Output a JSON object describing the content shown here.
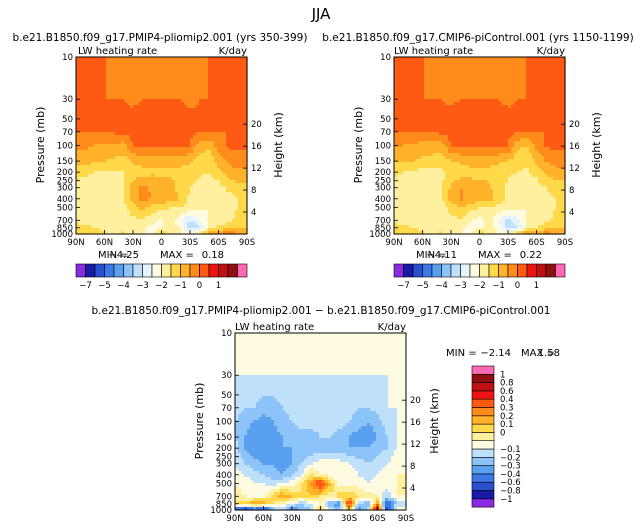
{
  "season": "JJA",
  "palette_absolute": [
    "#8a2be2",
    "#1a1aa8",
    "#2850d0",
    "#3c78e6",
    "#5aa0f0",
    "#8cc3f8",
    "#bfe0fb",
    "#e8f4fd",
    "#fffbe0",
    "#fff0a0",
    "#ffd94a",
    "#ffb22a",
    "#ff8c1a",
    "#ff5a14",
    "#ee1414",
    "#c01010",
    "#901010",
    "#ff69b4"
  ],
  "palette_difference": [
    "#8a2be2",
    "#1a1aa8",
    "#2850d0",
    "#3c78e6",
    "#5aa0f0",
    "#8cc3f8",
    "#bfe0fb",
    "#fffbe0",
    "#fff0a0",
    "#ffd94a",
    "#ffb22a",
    "#ff8c1a",
    "#ff5a14",
    "#ee1414",
    "#c01010",
    "#901010",
    "#ff69b4"
  ],
  "chart_data": [
    {
      "type": "heatmap",
      "title": "b.e21.B1850.f09_g17.PMIP4-pliomip2.001 (yrs 350-399)",
      "variable_label": "LW heating rate",
      "units_label": "K/day",
      "ylabel": "Pressure (mb)",
      "ylabel_right": "Height (km)",
      "x_ticks": [
        "90N",
        "60N",
        "30N",
        "0",
        "30S",
        "60S",
        "90S"
      ],
      "p_ticks": [
        "10",
        "30",
        "50",
        "70",
        "100",
        "150",
        "200",
        "250",
        "300",
        "400",
        "500",
        "700",
        "850",
        "1000"
      ],
      "p_tick_values": [
        10,
        30,
        50,
        70,
        100,
        150,
        200,
        250,
        300,
        400,
        500,
        700,
        850,
        1000
      ],
      "z_ticks": [
        "4",
        "8",
        "12",
        "16",
        "20"
      ],
      "z_tick_values": [
        4,
        8,
        12,
        16,
        20
      ],
      "min_label": "MIN =",
      "min_value": "−4.25",
      "max_label": "MAX =",
      "max_value": "0.18",
      "colorbar_labels": [
        "−7",
        "−5",
        "−4",
        "−3",
        "−2",
        "−1",
        "0",
        "1"
      ],
      "colorbar_label_positions": [
        1,
        3,
        5,
        7,
        9,
        11,
        13,
        15
      ],
      "lat_nodes": [
        90,
        80,
        70,
        60,
        50,
        40,
        30,
        20,
        10,
        0,
        -10,
        -20,
        -30,
        -40,
        -50,
        -60,
        -70,
        -80,
        -90
      ],
      "p_rows": [
        10,
        30,
        70,
        100,
        150,
        200,
        300,
        400,
        500,
        700,
        850,
        1000
      ],
      "values": [
        [
          0.1,
          0.1,
          0.05,
          0.0,
          -0.05,
          -0.1,
          -0.1,
          -0.1,
          -0.1,
          -0.1,
          -0.1,
          -0.1,
          -0.1,
          -0.05,
          0.0,
          0.05,
          0.1,
          0.1,
          0.1
        ],
        [
          0.15,
          0.1,
          0.05,
          0.0,
          0.0,
          0.0,
          -0.05,
          0.0,
          0.0,
          0.0,
          0.0,
          0.0,
          -0.05,
          0.0,
          0.0,
          0.05,
          0.1,
          0.15,
          0.15
        ],
        [
          0.0,
          0.0,
          0.0,
          0.05,
          0.08,
          0.12,
          0.15,
          0.15,
          0.15,
          0.12,
          0.15,
          0.15,
          0.12,
          0.05,
          0.0,
          0.0,
          0.0,
          0.0,
          0.0
        ],
        [
          -0.4,
          -0.4,
          -0.5,
          -0.6,
          -0.6,
          -0.7,
          0.0,
          0.05,
          0.1,
          0.1,
          0.1,
          0.05,
          0.0,
          -0.8,
          -0.9,
          -0.3,
          0.1,
          0.1,
          0.1
        ],
        [
          -0.8,
          -0.8,
          -0.9,
          -1.0,
          -1.1,
          -1.2,
          -0.9,
          -0.8,
          -0.7,
          -0.7,
          -0.7,
          -0.8,
          -0.9,
          -1.2,
          -1.3,
          -0.8,
          -0.4,
          -0.2,
          -0.2
        ],
        [
          -1.3,
          -1.4,
          -1.5,
          -1.6,
          -1.6,
          -1.5,
          -1.2,
          -1.2,
          -1.1,
          -1.1,
          -1.1,
          -1.2,
          -1.3,
          -1.4,
          -1.5,
          -1.2,
          -0.8,
          -0.6,
          -0.6
        ],
        [
          -1.7,
          -1.8,
          -1.8,
          -1.9,
          -1.8,
          -1.6,
          -0.8,
          -0.4,
          -0.6,
          -0.7,
          -0.8,
          -1.2,
          -1.5,
          -1.7,
          -1.9,
          -1.7,
          -1.4,
          -1.2,
          -1.2
        ],
        [
          -1.8,
          -1.9,
          -2.0,
          -1.9,
          -1.8,
          -1.6,
          -0.7,
          -0.3,
          -0.5,
          -0.6,
          -0.7,
          -1.1,
          -1.6,
          -1.9,
          -2.0,
          -1.9,
          -1.7,
          -1.5,
          -1.5
        ],
        [
          -1.8,
          -1.9,
          -2.0,
          -2.0,
          -1.9,
          -1.7,
          -1.2,
          -0.8,
          -1.2,
          -1.4,
          -1.5,
          -1.5,
          -1.7,
          -1.9,
          -2.0,
          -1.9,
          -1.7,
          -1.5,
          -1.5
        ],
        [
          -1.6,
          -1.7,
          -1.8,
          -1.9,
          -1.9,
          -1.8,
          -1.6,
          -1.6,
          -1.8,
          -2.1,
          -1.6,
          -2.5,
          -3.0,
          -2.5,
          -2.0,
          -1.8,
          -1.6,
          -1.4,
          -1.4
        ],
        [
          -1.3,
          -1.4,
          -1.5,
          -1.6,
          -1.7,
          -1.6,
          -1.7,
          -1.9,
          -2.2,
          -2.0,
          -1.8,
          -2.0,
          -3.6,
          -3.2,
          -1.8,
          -1.4,
          -1.2,
          -1.0,
          -1.0
        ],
        [
          -1.0,
          -1.1,
          -1.2,
          -1.4,
          -1.6,
          -1.4,
          -1.7,
          -1.9,
          -2.3,
          -1.0,
          -1.8,
          -2.0,
          -1.6,
          -1.6,
          -0.3,
          -0.5,
          0.0,
          -0.5,
          -0.5
        ]
      ]
    },
    {
      "type": "heatmap",
      "title": "b.e21.B1850.f09_g17.CMIP6-piControl.001 (yrs 1150-1199)",
      "variable_label": "LW heating rate",
      "units_label": "K/day",
      "ylabel": "Pressure (mb)",
      "ylabel_right": "Height (km)",
      "x_ticks": [
        "90N",
        "60N",
        "30N",
        "0",
        "30S",
        "60S",
        "90S"
      ],
      "p_ticks": [
        "10",
        "30",
        "50",
        "70",
        "100",
        "150",
        "200",
        "250",
        "300",
        "400",
        "500",
        "700",
        "850",
        "1000"
      ],
      "p_tick_values": [
        10,
        30,
        50,
        70,
        100,
        150,
        200,
        250,
        300,
        400,
        500,
        700,
        850,
        1000
      ],
      "z_ticks": [
        "4",
        "8",
        "12",
        "16",
        "20"
      ],
      "z_tick_values": [
        4,
        8,
        12,
        16,
        20
      ],
      "min_label": "MIN =",
      "min_value": "−4.11",
      "max_label": "MAX =",
      "max_value": "0.22",
      "colorbar_labels": [
        "−7",
        "−5",
        "−4",
        "−3",
        "−2",
        "−1",
        "0",
        "1"
      ],
      "colorbar_label_positions": [
        1,
        3,
        5,
        7,
        9,
        11,
        13,
        15
      ],
      "lat_nodes": [
        90,
        80,
        70,
        60,
        50,
        40,
        30,
        20,
        10,
        0,
        -10,
        -20,
        -30,
        -40,
        -50,
        -60,
        -70,
        -80,
        -90
      ],
      "p_rows": [
        10,
        30,
        70,
        100,
        150,
        200,
        300,
        400,
        500,
        700,
        850,
        1000
      ],
      "values": [
        [
          0.1,
          0.1,
          0.05,
          0.0,
          -0.05,
          -0.1,
          -0.1,
          -0.1,
          -0.1,
          -0.1,
          -0.1,
          -0.1,
          -0.1,
          -0.05,
          0.0,
          0.05,
          0.1,
          0.1,
          0.1
        ],
        [
          0.15,
          0.1,
          0.05,
          0.0,
          0.0,
          0.0,
          -0.05,
          0.0,
          0.0,
          0.0,
          0.0,
          0.0,
          -0.05,
          0.0,
          0.0,
          0.05,
          0.1,
          0.15,
          0.15
        ],
        [
          0.0,
          0.0,
          0.0,
          0.05,
          0.08,
          0.12,
          0.18,
          0.18,
          0.18,
          0.15,
          0.18,
          0.18,
          0.15,
          0.05,
          0.0,
          0.0,
          0.0,
          0.0,
          0.0
        ],
        [
          -0.5,
          -0.5,
          -0.6,
          -0.7,
          -0.7,
          -0.8,
          0.0,
          0.05,
          0.1,
          0.1,
          0.1,
          0.05,
          0.0,
          -0.9,
          -1.0,
          -0.4,
          0.1,
          0.1,
          0.1
        ],
        [
          -0.9,
          -0.9,
          -1.0,
          -1.1,
          -1.2,
          -1.3,
          -1.0,
          -0.9,
          -0.8,
          -0.8,
          -0.8,
          -0.9,
          -1.0,
          -1.3,
          -1.4,
          -0.9,
          -0.5,
          -0.3,
          -0.3
        ],
        [
          -1.4,
          -1.5,
          -1.6,
          -1.7,
          -1.7,
          -1.6,
          -1.3,
          -1.3,
          -1.2,
          -1.2,
          -1.2,
          -1.3,
          -1.4,
          -1.5,
          -1.6,
          -1.3,
          -0.9,
          -0.7,
          -0.7
        ],
        [
          -1.7,
          -1.8,
          -1.9,
          -1.9,
          -1.8,
          -1.6,
          -0.9,
          -0.5,
          -0.7,
          -0.8,
          -0.9,
          -1.3,
          -1.6,
          -1.8,
          -1.9,
          -1.8,
          -1.5,
          -1.3,
          -1.3
        ],
        [
          -1.8,
          -1.9,
          -2.0,
          -1.9,
          -1.8,
          -1.6,
          -0.8,
          -0.4,
          -0.6,
          -0.7,
          -0.8,
          -1.2,
          -1.7,
          -1.9,
          -2.0,
          -1.9,
          -1.7,
          -1.5,
          -1.5
        ],
        [
          -1.8,
          -1.9,
          -2.0,
          -2.0,
          -1.9,
          -1.7,
          -1.3,
          -0.9,
          -1.3,
          -1.5,
          -1.6,
          -1.6,
          -1.8,
          -1.9,
          -2.0,
          -1.9,
          -1.7,
          -1.5,
          -1.5
        ],
        [
          -1.6,
          -1.7,
          -1.8,
          -1.9,
          -1.9,
          -1.8,
          -1.7,
          -1.6,
          -1.9,
          -2.2,
          -1.7,
          -2.6,
          -3.1,
          -2.6,
          -2.0,
          -1.8,
          -1.6,
          -1.4,
          -1.4
        ],
        [
          -1.3,
          -1.4,
          -1.5,
          -1.6,
          -1.7,
          -1.6,
          -1.8,
          -1.9,
          -2.2,
          -2.1,
          -1.9,
          -2.1,
          -3.4,
          -3.0,
          -1.9,
          -1.5,
          -1.2,
          -1.0,
          -1.0
        ],
        [
          -1.0,
          -1.1,
          -1.2,
          -1.4,
          -1.6,
          -1.4,
          -1.7,
          -1.9,
          -2.3,
          -1.1,
          -1.8,
          -2.0,
          -1.7,
          -0.9,
          -0.4,
          -0.5,
          -0.1,
          -0.6,
          -0.6
        ]
      ]
    },
    {
      "type": "heatmap",
      "title": "b.e21.B1850.f09_g17.PMIP4-pliomip2.001 − b.e21.B1850.f09_g17.CMIP6-piControl.001",
      "variable_label": "LW heating rate",
      "units_label": "K/day",
      "ylabel": "Pressure (mb)",
      "ylabel_right": "Height (km)",
      "x_ticks": [
        "90N",
        "60N",
        "30N",
        "0",
        "30S",
        "60S",
        "90S"
      ],
      "p_ticks": [
        "10",
        "30",
        "50",
        "70",
        "100",
        "150",
        "200",
        "250",
        "300",
        "400",
        "500",
        "700",
        "850",
        "1000"
      ],
      "p_tick_values": [
        10,
        30,
        50,
        70,
        100,
        150,
        200,
        250,
        300,
        400,
        500,
        700,
        850,
        1000
      ],
      "z_ticks": [
        "4",
        "8",
        "12",
        "16",
        "20"
      ],
      "z_tick_values": [
        4,
        8,
        12,
        16,
        20
      ],
      "min_label": "MIN =",
      "min_value": "−2.14",
      "max_label": "MAX =",
      "max_value": "1.58",
      "colorbar_labels": [
        "1",
        "0.8",
        "0.6",
        "0.4",
        "0.3",
        "0.2",
        "0.1",
        "0",
        "−0.1",
        "−0.2",
        "−0.3",
        "−0.4",
        "−0.6",
        "−0.8",
        "−1"
      ],
      "colorbar_label_positions": [
        16,
        15,
        14,
        13,
        12,
        11,
        10,
        9,
        7,
        6,
        5,
        4,
        3,
        2,
        1
      ],
      "lat_nodes": [
        90,
        80,
        70,
        60,
        50,
        40,
        30,
        20,
        10,
        0,
        -10,
        -20,
        -30,
        -40,
        -50,
        -60,
        -70,
        -80,
        -90
      ],
      "p_rows": [
        10,
        30,
        70,
        100,
        150,
        200,
        300,
        400,
        500,
        700,
        850,
        1000
      ],
      "values": [
        [
          -0.05,
          -0.05,
          -0.05,
          -0.05,
          -0.05,
          -0.05,
          -0.05,
          -0.05,
          -0.05,
          -0.05,
          -0.05,
          -0.05,
          -0.05,
          -0.05,
          -0.05,
          -0.05,
          -0.05,
          -0.05,
          -0.05
        ],
        [
          -0.1,
          -0.1,
          -0.1,
          -0.1,
          -0.1,
          -0.1,
          -0.1,
          -0.1,
          -0.1,
          -0.1,
          -0.1,
          -0.1,
          -0.1,
          -0.1,
          -0.1,
          -0.1,
          -0.1,
          -0.1,
          -0.1
        ],
        [
          -0.15,
          -0.2,
          -0.2,
          -0.25,
          -0.25,
          -0.2,
          -0.15,
          -0.15,
          -0.15,
          -0.15,
          -0.15,
          -0.15,
          -0.15,
          -0.2,
          -0.2,
          -0.15,
          -0.1,
          -0.1,
          -0.1
        ],
        [
          -0.2,
          -0.25,
          -0.3,
          -0.35,
          -0.3,
          -0.25,
          -0.2,
          -0.15,
          -0.15,
          -0.15,
          -0.15,
          -0.15,
          -0.2,
          -0.25,
          -0.3,
          -0.25,
          -0.15,
          -0.1,
          -0.1
        ],
        [
          -0.2,
          -0.3,
          -0.4,
          -0.4,
          -0.35,
          -0.3,
          -0.25,
          -0.25,
          -0.25,
          -0.2,
          -0.2,
          -0.25,
          -0.3,
          -0.35,
          -0.35,
          -0.3,
          -0.2,
          -0.1,
          -0.1
        ],
        [
          -0.15,
          -0.3,
          -0.4,
          -0.4,
          -0.35,
          -0.3,
          -0.3,
          -0.3,
          -0.3,
          -0.25,
          -0.25,
          -0.25,
          -0.3,
          -0.3,
          -0.3,
          -0.25,
          -0.2,
          -0.1,
          -0.1
        ],
        [
          -0.1,
          -0.2,
          -0.25,
          -0.3,
          -0.3,
          -0.35,
          -0.3,
          -0.2,
          -0.1,
          -0.05,
          -0.05,
          -0.05,
          -0.1,
          -0.15,
          -0.2,
          -0.15,
          -0.1,
          -0.05,
          -0.05
        ],
        [
          -0.05,
          -0.1,
          -0.15,
          -0.2,
          -0.25,
          -0.3,
          -0.2,
          -0.1,
          0.1,
          0.0,
          -0.05,
          -0.05,
          -0.05,
          -0.1,
          -0.15,
          -0.1,
          -0.05,
          0.0,
          0.0
        ],
        [
          0.0,
          -0.05,
          -0.1,
          -0.1,
          -0.15,
          -0.1,
          -0.05,
          0.1,
          0.3,
          0.6,
          0.2,
          -0.05,
          -0.05,
          -0.05,
          -0.1,
          -0.05,
          -0.05,
          0.0,
          0.0
        ],
        [
          0.05,
          0.0,
          -0.05,
          -0.05,
          0.15,
          0.3,
          0.2,
          0.1,
          0.2,
          0.1,
          0.05,
          0.15,
          0.2,
          0.1,
          0.05,
          0.0,
          -0.2,
          0.0,
          0.0
        ],
        [
          0.1,
          0.2,
          0.3,
          0.3,
          0.1,
          0.0,
          -0.1,
          -0.2,
          -0.1,
          0.0,
          -0.3,
          -0.4,
          0.6,
          -0.2,
          -0.3,
          0.3,
          -0.6,
          -0.2,
          -0.2
        ],
        [
          -0.5,
          -0.9,
          -0.6,
          -0.8,
          -0.3,
          -0.2,
          -0.4,
          -0.3,
          -0.2,
          0.2,
          -0.1,
          -0.2,
          0.1,
          -0.4,
          -0.2,
          0.9,
          -0.8,
          0.0,
          0.0
        ]
      ]
    }
  ]
}
